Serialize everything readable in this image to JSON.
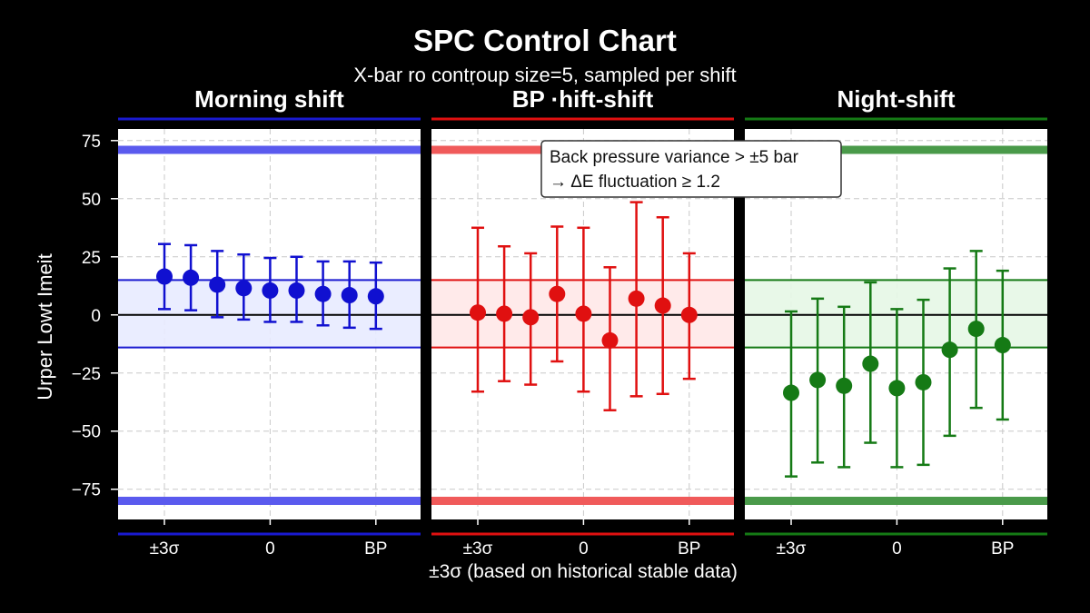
{
  "header": {
    "title": "SPC Control Chart",
    "subtitle": "X-bar ro contṛoup size=5, sampled per shift"
  },
  "axes": {
    "ylabel": "Urper Lowt Imeit",
    "xlabel": "±3σ (based on historical stable data)"
  },
  "annotation": {
    "line1": "Back pressure variance > ±5 bar",
    "line2": "→ ΔE fluctuation ≥ 1.2"
  },
  "colors": {
    "background": "#000000",
    "morning": "#1010d0",
    "bp": "#e01010",
    "night": "#157a15"
  },
  "chart_data": {
    "type": "scatter",
    "title": "SPC Control Chart",
    "subtitle": "X-bar ro contṛoup size=5, sampled per shift",
    "ylabel": "Urper Lowt Imeit",
    "xlabel": "±3σ (based on historical stable data)",
    "ylim": [
      -88,
      80
    ],
    "yticks": [
      75,
      50,
      25,
      0,
      -25,
      -50,
      -75
    ],
    "ytick_labels": [
      "75",
      "50",
      "25",
      "0",
      "−25",
      "−50",
      "−75"
    ],
    "xticks": [
      1,
      5,
      9
    ],
    "xtick_labels": [
      "±3σ",
      "0",
      "BP"
    ],
    "grid": true,
    "limits": {
      "UCL": 71,
      "LCL": -80,
      "upper_band": 15,
      "lower_band": -14,
      "center": 0
    },
    "panels": [
      {
        "name": "Morning shift",
        "color": "#1010d0",
        "x": [
          1,
          2,
          3,
          4,
          5,
          6,
          7,
          8,
          9
        ],
        "values": [
          16.5,
          16,
          13,
          11.5,
          10.5,
          10.5,
          9,
          8.5,
          8
        ],
        "upper": [
          30.5,
          30,
          27.5,
          26,
          24.5,
          25,
          23,
          23,
          22.5
        ],
        "lower": [
          2.5,
          2,
          -1,
          -2,
          -3,
          -3,
          -4.5,
          -5.5,
          -6
        ]
      },
      {
        "name": "BP ·hift-shift",
        "color": "#e01010",
        "x": [
          1,
          2,
          3,
          4,
          5,
          6,
          7,
          8,
          9
        ],
        "values": [
          1,
          0.5,
          -1,
          9,
          0.5,
          -11,
          7,
          4,
          0
        ],
        "upper": [
          37.5,
          29.5,
          26.5,
          38,
          37.5,
          20.5,
          48.5,
          42,
          26.5
        ],
        "lower": [
          -33,
          -28.5,
          -30,
          -20,
          -33,
          -41,
          -35,
          -34,
          -27.5
        ]
      },
      {
        "name": "Night-shift",
        "color": "#157a15",
        "x": [
          1,
          2,
          3,
          4,
          5,
          6,
          7,
          8,
          9
        ],
        "values": [
          -33.5,
          -28,
          -30.5,
          -21,
          -31.5,
          -29,
          -15,
          -6,
          -13
        ],
        "upper": [
          1.5,
          7,
          3.5,
          14,
          2.5,
          6.5,
          20,
          27.5,
          19
        ],
        "lower": [
          -69.5,
          -63.5,
          -65.5,
          -55,
          -65.5,
          -64.5,
          -52,
          -40,
          -45
        ]
      }
    ]
  }
}
